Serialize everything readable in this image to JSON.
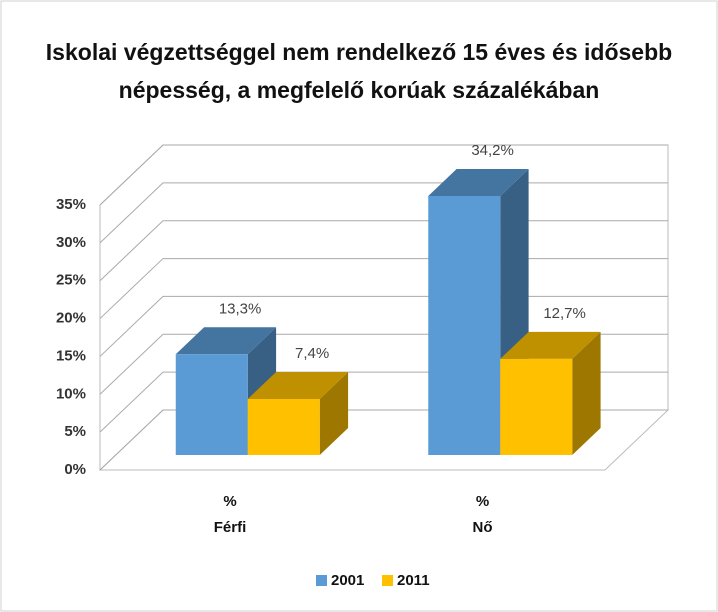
{
  "chart_data": {
    "type": "bar3d",
    "title": [
      "Iskolai végzettséggel nem rendelkező 15 éves és idősebb",
      "népesség, a megfelelő korúak százalékában"
    ],
    "categories": [
      [
        "%",
        "Férfi"
      ],
      [
        "%",
        "Nő"
      ]
    ],
    "series": [
      {
        "name": "2001",
        "color": "#5b9bd5",
        "values": [
          13.3,
          34.2
        ],
        "value_labels": [
          "13,3%",
          "34,2%"
        ]
      },
      {
        "name": "2011",
        "color": "#ffc000",
        "values": [
          7.4,
          12.7
        ],
        "value_labels": [
          "7,4%",
          "12,7%"
        ]
      }
    ],
    "ylim": [
      0,
      35
    ],
    "yticks": [
      {
        "value": 0,
        "label": "0%"
      },
      {
        "value": 5,
        "label": "5%"
      },
      {
        "value": 10,
        "label": "10%"
      },
      {
        "value": 15,
        "label": "15%"
      },
      {
        "value": 20,
        "label": "20%"
      },
      {
        "value": 25,
        "label": "25%"
      },
      {
        "value": 30,
        "label": "30%"
      },
      {
        "value": 35,
        "label": "35%"
      }
    ],
    "grid": true,
    "legend": "bottom"
  }
}
